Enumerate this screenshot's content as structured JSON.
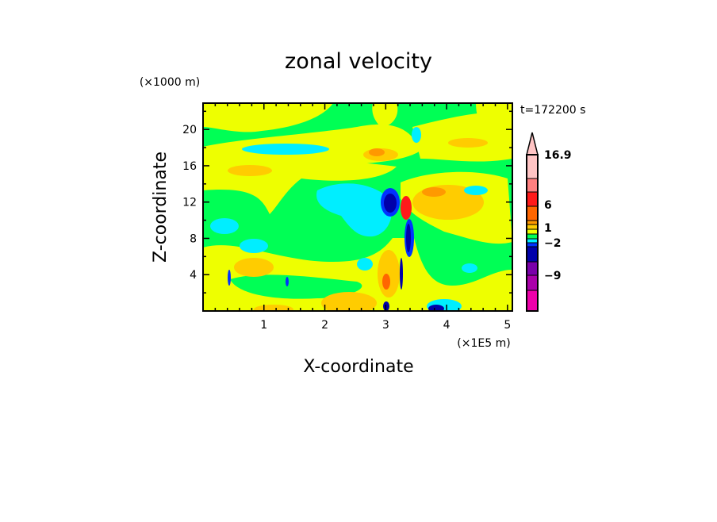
{
  "chart_data": {
    "type": "heatmap",
    "title": "zonal velocity",
    "xlabel": "X-coordinate",
    "ylabel": "Z-coordinate",
    "x_unit": "(×1E5 m)",
    "y_unit": "(×1000 m)",
    "time_label": "t=172200 s",
    "xlim": [
      0,
      5.08
    ],
    "ylim": [
      0,
      22.9
    ],
    "x_ticks": [
      1,
      2,
      3,
      4,
      5
    ],
    "y_ticks": [
      4,
      8,
      12,
      16,
      20
    ],
    "colorbar": {
      "labels": [
        "16.9",
        "6",
        "1",
        "−2",
        "−9"
      ],
      "max_label": "16.9",
      "colors_top_to_bottom": [
        "#ffc4c4",
        "#ff8080",
        "#ff1a1a",
        "#ff6600",
        "#ff9900",
        "#ffcc00",
        "#eeff00",
        "#00ff55",
        "#00eeff",
        "#0033ff",
        "#0000aa",
        "#7a00aa",
        "#aa00aa",
        "#ee00aa"
      ]
    },
    "palette": {
      "background": "#00ff55",
      "positive_small": "#eeff00",
      "positive_mid": "#ffcc00",
      "positive_high": "#ff9900",
      "positive_strong": "#ff6600",
      "red": "#ff1a1a",
      "negative_small": "#00eeff",
      "negative_mid": "#0033ff",
      "negative_strong": "#0000aa"
    }
  }
}
